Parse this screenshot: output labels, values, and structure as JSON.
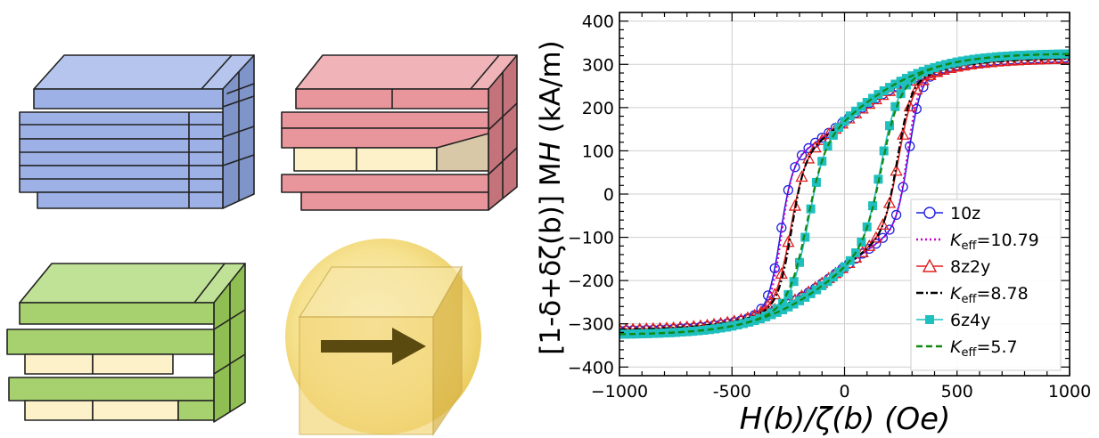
{
  "chart_data": {
    "type": "line",
    "xlabel": "H(b)/ζ(b) (Oe)",
    "ylabel": "[1-δ+δζ(b)] M_H (kA/m)",
    "xlim": [
      -1000,
      1000
    ],
    "ylim": [
      -420,
      420
    ],
    "xticks": [
      -1000,
      -500,
      0,
      500,
      1000
    ],
    "yticks": [
      -400,
      -300,
      -200,
      -100,
      0,
      100,
      200,
      300,
      400
    ],
    "x_tick_labels": [
      "−1000",
      "-500",
      "0",
      "500",
      "1000"
    ],
    "y_tick_labels": [
      "−400",
      "−300",
      "−200",
      "−100",
      "0",
      "100",
      "200",
      "300",
      "400"
    ],
    "grid": true,
    "legend_position": "bottom-right",
    "legend": [
      {
        "label": "10z",
        "color": "#1f1fe0",
        "style": "solid",
        "marker": "circle-open"
      },
      {
        "label": "K_eff=10.79",
        "label_main": "K",
        "label_sub": "eff",
        "label_rest": "=10.79",
        "color": "#cc00cc",
        "style": "dotted",
        "marker": "none"
      },
      {
        "label": "8z2y",
        "color": "#e01f1f",
        "style": "solid",
        "marker": "triangle-open"
      },
      {
        "label": "K_eff=8.78",
        "label_main": "K",
        "label_sub": "eff",
        "label_rest": "=8.78",
        "color": "#000000",
        "style": "dashdot",
        "marker": "none"
      },
      {
        "label": "6z4y",
        "color": "#1fbfbf",
        "style": "solid",
        "marker": "square-filled"
      },
      {
        "label": "K_eff=5.7",
        "label_main": "K",
        "label_sub": "eff",
        "label_rest": "=5.7",
        "color": "#118811",
        "style": "dashed",
        "marker": "none"
      }
    ],
    "loops": [
      {
        "key": "10z",
        "Hc": 285,
        "Ms": 375,
        "w": 55,
        "color": "#1f1fe0",
        "marker": "circle-open",
        "marker_step": 30
      },
      {
        "key": "K10",
        "Hc": 280,
        "Ms": 375,
        "w": 50,
        "color": "#cc00cc",
        "dash": "2 3",
        "marker": "none"
      },
      {
        "key": "8z2y",
        "Hc": 240,
        "Ms": 372,
        "w": 65,
        "color": "#e01f1f",
        "marker": "triangle-open",
        "marker_step": 30
      },
      {
        "key": "K8",
        "Hc": 235,
        "Ms": 372,
        "w": 60,
        "color": "#000000",
        "dash": "8 3 2 3",
        "marker": "none"
      },
      {
        "key": "6z4y",
        "Hc": 160,
        "Ms": 385,
        "w": 75,
        "color": "#1fbfbf",
        "marker": "square-filled",
        "marker_step": 25
      },
      {
        "key": "K5",
        "Hc": 165,
        "Ms": 385,
        "w": 80,
        "color": "#118811",
        "dash": "7 4",
        "marker": "none"
      }
    ]
  },
  "illustrations": {
    "colors": {
      "blue": "#9db1e6",
      "red": "#e8959b",
      "green": "#a6d16e",
      "cream": "#fcf1c8",
      "gold": "#f0d98a",
      "arrow": "#5a4a10"
    }
  }
}
